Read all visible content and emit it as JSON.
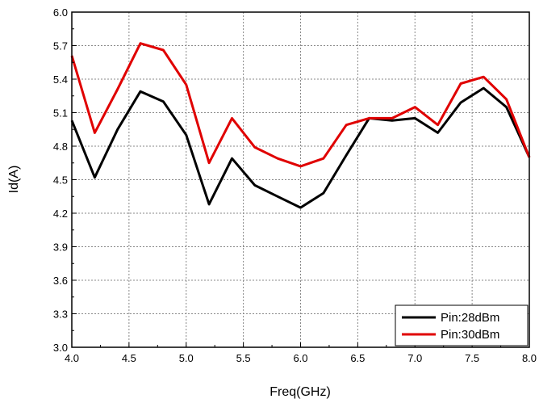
{
  "chart_data": {
    "type": "line",
    "title": "",
    "xlabel": "Freq(GHz)",
    "ylabel": "Id(A)",
    "xlim": [
      4.0,
      8.0
    ],
    "ylim": [
      3.0,
      6.0
    ],
    "xticks": [
      "4.0",
      "4.5",
      "5.0",
      "5.5",
      "6.0",
      "6.5",
      "7.0",
      "7.5",
      "8.0"
    ],
    "yticks": [
      "3.0",
      "3.3",
      "3.6",
      "3.9",
      "4.2",
      "4.5",
      "4.8",
      "5.1",
      "5.4",
      "5.7",
      "6.0"
    ],
    "grid": true,
    "legend_position": "bottom-right",
    "x": [
      4.0,
      4.2,
      4.4,
      4.6,
      4.8,
      5.0,
      5.2,
      5.4,
      5.6,
      5.8,
      6.0,
      6.2,
      6.4,
      6.6,
      6.8,
      7.0,
      7.2,
      7.4,
      7.6,
      7.8,
      8.0
    ],
    "series": [
      {
        "name": "Pin:28dBm",
        "color": "#000000",
        "values": [
          5.03,
          4.52,
          4.95,
          5.29,
          5.2,
          4.9,
          4.28,
          4.69,
          4.45,
          4.35,
          4.25,
          4.38,
          4.72,
          5.05,
          5.03,
          5.05,
          4.92,
          5.19,
          5.32,
          5.15,
          4.7
        ]
      },
      {
        "name": "Pin:30dBm",
        "color": "#e00000",
        "values": [
          5.61,
          4.92,
          5.31,
          5.72,
          5.66,
          5.35,
          4.65,
          5.05,
          4.79,
          4.69,
          4.62,
          4.69,
          4.99,
          5.05,
          5.05,
          5.15,
          4.99,
          5.36,
          5.42,
          5.22,
          4.7
        ]
      }
    ]
  }
}
